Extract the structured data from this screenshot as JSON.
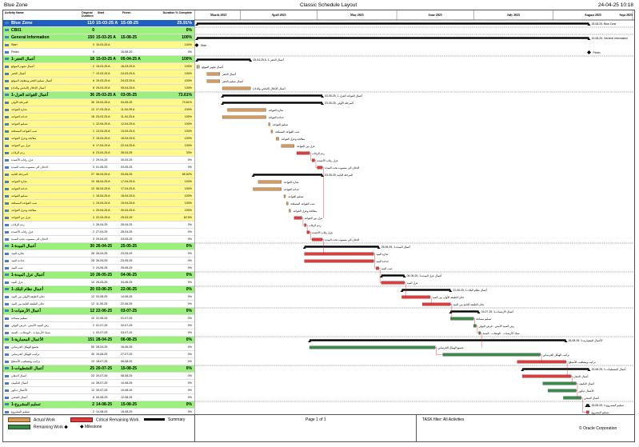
{
  "header": {
    "left": "Blue Zone",
    "center": "Classic Schedule Layout",
    "right": "24-04-25 10:18"
  },
  "columns": {
    "name": "Activity Name",
    "dur": "Original Duration",
    "start": "Start",
    "finish": "Finish",
    "pct": "Duration % Complete"
  },
  "months": [
    "March 2025",
    "April 2025",
    "May 2025",
    "June 2025",
    "July 2025",
    "August 2025"
  ],
  "months_tail": "Sept 2025",
  "rows": [
    {
      "t": "blue",
      "n": "Blue Zone",
      "d": "110",
      "s": "15-03-25 A",
      "f": "15-08-25",
      "p": "25.91%"
    },
    {
      "t": "green",
      "n": "CB01",
      "d": "0",
      "s": "",
      "f": "",
      "p": "0%"
    },
    {
      "t": "green",
      "n": "General Information",
      "d": "150",
      "s": "15-03-25 A",
      "f": "15-08-25",
      "p": "100%"
    },
    {
      "t": "yellow",
      "n": "Start",
      "d": "0",
      "s": "15-03-25 A",
      "f": "",
      "p": "100%"
    },
    {
      "t": "white",
      "n": "Finish",
      "d": "0",
      "s": "",
      "f": "15-08-25",
      "p": "0%"
    },
    {
      "t": "green",
      "n": "أعمال الحفر-1",
      "d": "18",
      "s": "15-03-25 A",
      "f": "05-04-25 A",
      "p": "100%"
    },
    {
      "t": "yellow",
      "n": "أعمال تجهيز الموقع",
      "d": "2",
      "s": "15-03-25 A",
      "f": "16-03-25 A",
      "p": "100%"
    },
    {
      "t": "yellow",
      "n": "أعمال الحفر",
      "d": "7",
      "s": "19-03-25 A",
      "f": "24-03-25 A",
      "p": "100%"
    },
    {
      "t": "yellow",
      "n": "أعمال تسليم الحفر وتنظيف الموقع",
      "d": "6",
      "s": "19-03-25 A",
      "f": "24-03-25 A",
      "p": "100%"
    },
    {
      "t": "yellow",
      "n": "أعمال الإحلال (البحص والدك)",
      "d": "8",
      "s": "25-03-25 A",
      "f": "05-04-25 A",
      "p": "100%"
    },
    {
      "t": "green",
      "n": "أعمال القواعد العزل-1",
      "d": "36",
      "s": "25-03-25 A",
      "f": "03-05-25",
      "p": "73.61%"
    },
    {
      "t": "yellow",
      "n": "المرحلة الأولى",
      "d": "36",
      "s": "25-03-25 A",
      "f": "03-05-25",
      "p": "73.61%"
    },
    {
      "t": "yellow",
      "n": "نجارة القواعد",
      "d": "12",
      "s": "27-03-25 A",
      "f": "11-04-25 A",
      "p": "100%"
    },
    {
      "t": "yellow",
      "n": "حدادة القواعد",
      "d": "16",
      "s": "25-03-25 A",
      "f": "11-04-25 A",
      "p": "100%"
    },
    {
      "t": "yellow",
      "n": "تسليم القواعد",
      "d": "1",
      "s": "12-04-25 A",
      "f": "12-04-25 A",
      "p": "100%"
    },
    {
      "t": "yellow",
      "n": "صب القواعد المسلحة",
      "d": "1",
      "s": "13-04-25 A",
      "f": "13-04-25 A",
      "p": "100%"
    },
    {
      "t": "yellow",
      "n": "معالجة وعزل القواعد",
      "d": "2",
      "s": "15-04-25 A",
      "f": "16-04-25 A",
      "p": "100%"
    },
    {
      "t": "yellow",
      "n": "عزل بين القواعد",
      "d": "6",
      "s": "17-04-25 A",
      "f": "22-04-25 A",
      "p": "100%"
    },
    {
      "t": "yellow",
      "n": "ردم الرقاب",
      "d": "6",
      "s": "23-04-25 A",
      "f": "28-04-25",
      "p": "33%"
    },
    {
      "t": "white",
      "n": "عزل رقاب الأعمدة",
      "d": "2",
      "s": "29-04-25",
      "f": "30-04-25",
      "p": "0%"
    },
    {
      "t": "white",
      "n": "الدفان الى منسوب تحت الميدة",
      "d": "3",
      "s": "01-05-25",
      "f": "03-05-25",
      "p": "0%"
    },
    {
      "t": "yellow",
      "n": "المرحلة الثانية",
      "d": "27",
      "s": "06-04-25 A",
      "f": "03-05-25",
      "p": "65.52%"
    },
    {
      "t": "yellow",
      "n": "نجارة القواعد",
      "d": "10",
      "s": "08-04-25 A",
      "f": "17-04-25 A",
      "p": "100%"
    },
    {
      "t": "yellow",
      "n": "حدادة القواعد",
      "d": "12",
      "s": "06-04-25 A",
      "f": "17-04-25 A",
      "p": "100%"
    },
    {
      "t": "yellow",
      "n": "تسليم القواعد",
      "d": "1",
      "s": "18-04-25 A",
      "f": "18-04-25 A",
      "p": "100%"
    },
    {
      "t": "yellow",
      "n": "صب القواعد المسلحة",
      "d": "1",
      "s": "19-04-25 A",
      "f": "19-04-25 A",
      "p": "100%"
    },
    {
      "t": "yellow",
      "n": "معالجة وعزل القواعد",
      "d": "1",
      "s": "20-04-25 A",
      "f": "20-04-25 A",
      "p": "100%"
    },
    {
      "t": "yellow",
      "n": "عزل بين القواعد",
      "d": "4",
      "s": "22-04-25 A",
      "f": "25-04-25",
      "p": "62.5%"
    },
    {
      "t": "white",
      "n": "ردم الرقاب",
      "d": "1",
      "s": "26-04-25",
      "f": "26-04-25",
      "p": "0%"
    },
    {
      "t": "white",
      "n": "عزل رقاب الأعمدة",
      "d": "2",
      "s": "27-04-25",
      "f": "28-04-25",
      "p": "0%"
    },
    {
      "t": "white",
      "n": "الدفان الى منسوب تحت الميدة",
      "d": "3",
      "s": "29-04-25",
      "f": "03-05-25",
      "p": "0%"
    },
    {
      "t": "green",
      "n": "أعمال الميدة-1",
      "d": "30",
      "s": "26-04-25",
      "f": "25-05-25",
      "p": "0%"
    },
    {
      "t": "white",
      "n": "نجارة الميد",
      "d": "26",
      "s": "26-04-25",
      "f": "23-05-25",
      "p": "0%"
    },
    {
      "t": "white",
      "n": "حدادة الميد",
      "d": "28",
      "s": "26-04-25",
      "f": "23-05-25",
      "p": "0%"
    },
    {
      "t": "white",
      "n": "صب الميد",
      "d": "2",
      "s": "24-05-25",
      "f": "25-05-25",
      "p": "0%"
    },
    {
      "t": "green",
      "n": "أعمال عزل الميدة-1",
      "d": "10",
      "s": "26-05-25",
      "f": "04-06-25",
      "p": "0%"
    },
    {
      "t": "white",
      "n": "عزل الميد",
      "d": "10",
      "s": "26-05-25",
      "f": "04-06-25",
      "p": "0%"
    },
    {
      "t": "green",
      "n": "أعمال نظام البلك-1",
      "d": "20",
      "s": "03-06-25",
      "f": "22-06-25",
      "p": "0%"
    },
    {
      "t": "white",
      "n": "دفان الطبقة الأولى بين الميد",
      "d": "12",
      "s": "03-06-25",
      "f": "14-06-25",
      "p": "0%"
    },
    {
      "t": "white",
      "n": "دفان الطبقة الثانية بين الميد",
      "d": "12",
      "s": "11-06-25",
      "f": "22-06-25",
      "p": "0%"
    },
    {
      "t": "green",
      "n": "أعمال الأرضيات-1",
      "d": "12",
      "s": "22-06-25",
      "f": "03-07-25",
      "p": "0%"
    },
    {
      "t": "white",
      "n": "تسليم مساحة",
      "d": "10",
      "s": "22-06-25",
      "f": "01-07-25",
      "p": "0%"
    },
    {
      "t": "white",
      "n": "رش المبيد الأبيض - فرش البولي",
      "d": "2",
      "s": "01-07-25",
      "f": "02-07-25",
      "p": "0%"
    },
    {
      "t": "white",
      "n": "شبك الأرضيات - الوصلات - المنبة",
      "d": "1",
      "s": "03-07-25",
      "f": "03-07-25",
      "p": "0%"
    },
    {
      "t": "green",
      "n": "الأعمال المعمارية-1",
      "d": "151",
      "s": "28-04-25",
      "f": "06-08-25",
      "p": "0%"
    },
    {
      "t": "white",
      "n": "تجميع الهيكل الخرساني",
      "d": "50",
      "s": "28-04-25",
      "f": "16-06-25",
      "p": "0%"
    },
    {
      "t": "white",
      "n": "تركيب الهيكل الخرساني",
      "d": "40",
      "s": "19-06-25",
      "f": "27-07-25",
      "p": "0%"
    },
    {
      "t": "white",
      "n": "تركيب وتشطيب الأسطح",
      "d": "10",
      "s": "18-07-25",
      "f": "06-08-25",
      "p": "0%"
    },
    {
      "t": "green",
      "n": "أعمال التشطيبات-1",
      "d": "25",
      "s": "20-07-25",
      "f": "15-08-25",
      "p": "0%"
    },
    {
      "t": "white",
      "n": "أعمال الدهان",
      "d": "20",
      "s": "20-07-25",
      "f": "08-08-25",
      "p": "0%"
    },
    {
      "t": "white",
      "n": "أعمال التكييف",
      "d": "14",
      "s": "28-07-25",
      "f": "10-08-25",
      "p": "0%"
    },
    {
      "t": "white",
      "n": "الأعمال ديكور",
      "d": "12",
      "s": "30-07-25",
      "f": "10-08-25",
      "p": "0%"
    },
    {
      "t": "white",
      "n": "أعمال الصحي",
      "d": "8",
      "s": "05-08-25",
      "f": "12-08-25",
      "p": "0%"
    },
    {
      "t": "green",
      "n": "تسليم المشروع-1",
      "d": "2",
      "s": "14-08-25",
      "f": "15-08-25",
      "p": "0%"
    },
    {
      "t": "white",
      "n": "تسليم المشروع",
      "d": "2",
      "s": "14-08-25",
      "f": "15-08-25",
      "p": "0%"
    }
  ],
  "chart_data": {
    "type": "gantt",
    "timeline_start": "2025-03-15",
    "timeline_end": "2025-09-01",
    "bars": [
      {
        "row": 0,
        "kind": "summary",
        "from": "2025-03-15",
        "to": "2025-08-15",
        "label": "15-08-25, Blue Zone"
      },
      {
        "row": 2,
        "kind": "summary",
        "from": "2025-03-15",
        "to": "2025-08-15",
        "label": "15-08-25, General Information"
      },
      {
        "row": 3,
        "kind": "milestone",
        "from": "2025-03-15",
        "to": "2025-03-15",
        "label": "Start"
      },
      {
        "row": 4,
        "kind": "milestone",
        "from": "2025-08-15",
        "to": "2025-08-15",
        "label": "Finish"
      },
      {
        "row": 5,
        "kind": "summary",
        "from": "2025-03-15",
        "to": "2025-04-05",
        "label": "05-04-25 A, أعمال الحفر-1"
      },
      {
        "row": 6,
        "kind": "actual",
        "from": "2025-03-15",
        "to": "2025-03-16",
        "label": "أعمال تجهيز الموقع"
      },
      {
        "row": 7,
        "kind": "actual",
        "from": "2025-03-19",
        "to": "2025-03-24",
        "label": "أعمال الحفر"
      },
      {
        "row": 8,
        "kind": "actual",
        "from": "2025-03-19",
        "to": "2025-03-24",
        "label": "أعمال تسليم الحفر"
      },
      {
        "row": 9,
        "kind": "actual",
        "from": "2025-03-25",
        "to": "2025-04-05",
        "label": "أعمال الإحلال (البحص والدك)"
      },
      {
        "row": 10,
        "kind": "summary",
        "from": "2025-03-25",
        "to": "2025-05-03",
        "label": "03-05-25, أعمال القواعد العزل-1"
      },
      {
        "row": 11,
        "kind": "summary",
        "from": "2025-03-25",
        "to": "2025-05-03",
        "label": "03-05-25, المرحلة الأولى"
      },
      {
        "row": 12,
        "kind": "actual",
        "from": "2025-03-27",
        "to": "2025-04-11",
        "label": "نجارة القواعد"
      },
      {
        "row": 13,
        "kind": "actual",
        "from": "2025-03-25",
        "to": "2025-04-11",
        "label": "حدادة القواعد"
      },
      {
        "row": 14,
        "kind": "actual",
        "from": "2025-04-12",
        "to": "2025-04-12",
        "label": "تسليم القواعد"
      },
      {
        "row": 15,
        "kind": "actual",
        "from": "2025-04-13",
        "to": "2025-04-13",
        "label": "صب القواعد المسلحة"
      },
      {
        "row": 16,
        "kind": "actual",
        "from": "2025-04-15",
        "to": "2025-04-16",
        "label": "معالجة وعزل القواعد"
      },
      {
        "row": 17,
        "kind": "actual",
        "from": "2025-04-17",
        "to": "2025-04-22",
        "label": "عزل بين القواعد"
      },
      {
        "row": 18,
        "kind": "critical",
        "from": "2025-04-23",
        "to": "2025-04-28",
        "label": "ردم الرقاب"
      },
      {
        "row": 19,
        "kind": "critical",
        "from": "2025-04-29",
        "to": "2025-04-30",
        "label": "عزل رقاب الأعمدة"
      },
      {
        "row": 20,
        "kind": "critical",
        "from": "2025-05-01",
        "to": "2025-05-03",
        "label": "الدفان الى منسوب تحت الميدة"
      },
      {
        "row": 21,
        "kind": "summary",
        "from": "2025-04-06",
        "to": "2025-05-03",
        "label": "03-05-25, المرحلة الثانية"
      },
      {
        "row": 22,
        "kind": "actual",
        "from": "2025-04-08",
        "to": "2025-04-17",
        "label": "نجارة القواعد"
      },
      {
        "row": 23,
        "kind": "actual",
        "from": "2025-04-06",
        "to": "2025-04-17",
        "label": "حدادة القواعد"
      },
      {
        "row": 24,
        "kind": "actual",
        "from": "2025-04-18",
        "to": "2025-04-18",
        "label": "تسليم القواعد"
      },
      {
        "row": 25,
        "kind": "actual",
        "from": "2025-04-19",
        "to": "2025-04-19",
        "label": "صب القواعد المسلحة"
      },
      {
        "row": 26,
        "kind": "actual",
        "from": "2025-04-20",
        "to": "2025-04-20",
        "label": "معالجة وعزل القواعد"
      },
      {
        "row": 27,
        "kind": "critical",
        "from": "2025-04-22",
        "to": "2025-04-25",
        "label": "عزل بين القواعد"
      },
      {
        "row": 28,
        "kind": "critical",
        "from": "2025-04-26",
        "to": "2025-04-26",
        "label": "ردم الرقاب"
      },
      {
        "row": 29,
        "kind": "critical",
        "from": "2025-04-27",
        "to": "2025-04-28",
        "label": "عزل رقاب الأعمدة"
      },
      {
        "row": 30,
        "kind": "critical",
        "from": "2025-04-29",
        "to": "2025-05-03",
        "label": "الدفان الى منسوب تحت الميدة"
      },
      {
        "row": 31,
        "kind": "summary",
        "from": "2025-04-26",
        "to": "2025-05-25",
        "label": "25-05-25, أعمال الميدة-1"
      },
      {
        "row": 32,
        "kind": "critical",
        "from": "2025-04-26",
        "to": "2025-05-23",
        "label": "نجارة الميد"
      },
      {
        "row": 33,
        "kind": "critical",
        "from": "2025-04-26",
        "to": "2025-05-23",
        "label": "حدادة الميد"
      },
      {
        "row": 34,
        "kind": "critical",
        "from": "2025-05-24",
        "to": "2025-05-25",
        "label": "صب الميد"
      },
      {
        "row": 35,
        "kind": "summary",
        "from": "2025-05-26",
        "to": "2025-06-04",
        "label": "04-06-25, أعمال عزل الميدة-1"
      },
      {
        "row": 36,
        "kind": "critical",
        "from": "2025-05-26",
        "to": "2025-06-04",
        "label": "عزل الميد"
      },
      {
        "row": 37,
        "kind": "summary",
        "from": "2025-06-03",
        "to": "2025-06-22",
        "label": "22-06-25, أعمال نظام البلك-1"
      },
      {
        "row": 38,
        "kind": "critical",
        "from": "2025-06-03",
        "to": "2025-06-14",
        "label": "دفان الطبقة الأولى بين الميد"
      },
      {
        "row": 39,
        "kind": "critical",
        "from": "2025-06-11",
        "to": "2025-06-22",
        "label": "دفان الطبقة الثانية بين الميد"
      },
      {
        "row": 40,
        "kind": "summary",
        "from": "2025-06-22",
        "to": "2025-07-03",
        "label": "03-07-25, أعمال الأرضيات-1"
      },
      {
        "row": 41,
        "kind": "remaining",
        "from": "2025-06-22",
        "to": "2025-07-01",
        "label": "تسليم مساحة"
      },
      {
        "row": 42,
        "kind": "remaining",
        "from": "2025-07-01",
        "to": "2025-07-02",
        "label": "رش المبيد الأبيض - فرش البولي"
      },
      {
        "row": 43,
        "kind": "remaining",
        "from": "2025-07-03",
        "to": "2025-07-03",
        "label": "شبك الأرضيات - الوصلات - المنبة"
      },
      {
        "row": 44,
        "kind": "summary",
        "from": "2025-04-28",
        "to": "2025-08-06",
        "label": "06-08-25, الأعمال المعمارية-1"
      },
      {
        "row": 45,
        "kind": "remaining",
        "from": "2025-04-28",
        "to": "2025-06-16",
        "label": "تجميع الهيكل الخرساني"
      },
      {
        "row": 46,
        "kind": "remaining",
        "from": "2025-06-19",
        "to": "2025-07-27",
        "label": "تركيب الهيكل الخرساني"
      },
      {
        "row": 47,
        "kind": "critical",
        "from": "2025-07-18",
        "to": "2025-08-06",
        "label": "تركيب وتشطيب الأسطح"
      },
      {
        "row": 48,
        "kind": "summary",
        "from": "2025-07-20",
        "to": "2025-08-15",
        "label": "15-08-25, أعمال التشطيبات-1"
      },
      {
        "row": 49,
        "kind": "critical",
        "from": "2025-07-20",
        "to": "2025-08-08",
        "label": "أعمال الدهان"
      },
      {
        "row": 50,
        "kind": "remaining",
        "from": "2025-07-28",
        "to": "2025-08-10",
        "label": "أعمال التكييف"
      },
      {
        "row": 51,
        "kind": "remaining",
        "from": "2025-07-30",
        "to": "2025-08-10",
        "label": "الأعمال ديكور"
      },
      {
        "row": 52,
        "kind": "remaining",
        "from": "2025-08-05",
        "to": "2025-08-12",
        "label": "أعمال الصحي"
      },
      {
        "row": 53,
        "kind": "summary",
        "from": "2025-08-14",
        "to": "2025-08-15",
        "label": "15-08-25, تسليم المشروع-1"
      },
      {
        "row": 54,
        "kind": "critical",
        "from": "2025-08-14",
        "to": "2025-08-15",
        "label": "تسليم المشروع"
      }
    ]
  },
  "legend": {
    "actual": "Actual Work",
    "critical": "Critical Remaining Work",
    "summary": "Summary",
    "remaining": "Remaining Work",
    "milestone": "Milestone",
    "page": "Page 1 of 1",
    "filter": "TASK filter: All Activities",
    "corp": "© Oracle Corporation"
  },
  "colors": {
    "actual": "#d89a5a",
    "critical": "#e03a3a",
    "remaining": "#3a8a4a",
    "summary": "#000000",
    "blue_band": "#1f5fbf",
    "green_band": "#9af07a",
    "yellow_band": "#fff98a"
  }
}
